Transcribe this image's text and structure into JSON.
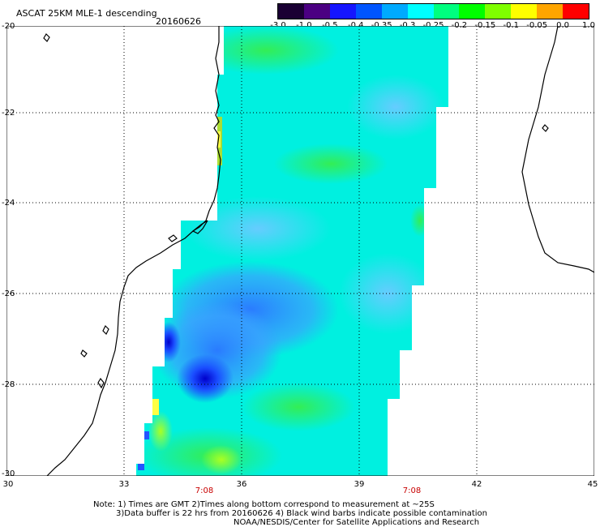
{
  "header": {
    "title": "ASCAT 25KM MLE-1 descending",
    "date": "20160626"
  },
  "colorbar": {
    "labels": [
      "-3.0",
      "-1.0",
      "-0.5",
      "-0.4",
      "-0.35",
      "-0.3",
      "-0.25",
      "-0.2",
      "-0.15",
      "-0.1",
      "-0.05",
      "0.0",
      "1.0"
    ],
    "colors": [
      "#1a0033",
      "#4b0082",
      "#1515ff",
      "#0055ff",
      "#00aaff",
      "#00ffff",
      "#00ff7f",
      "#00ff00",
      "#7fff00",
      "#ffff00",
      "#ffa500",
      "#ff0000"
    ]
  },
  "axes": {
    "lat_labels": [
      "-20",
      "-22",
      "-24",
      "-26",
      "-28",
      "-30"
    ],
    "lon_labels": [
      "30",
      "33",
      "36",
      "39",
      "42",
      "45"
    ]
  },
  "time_labels": [
    "7:08",
    "7:08"
  ],
  "notes": {
    "line1": "Note: 1) Times are GMT 2)Times along bottom correspond to measurement at ~25S",
    "line2": "3)Data buffer is 22 hrs from 20160626 4) Black wind barbs indicate possible contamination",
    "line3": "NOAA/NESDIS/Center for Satellite Applications and Research"
  }
}
